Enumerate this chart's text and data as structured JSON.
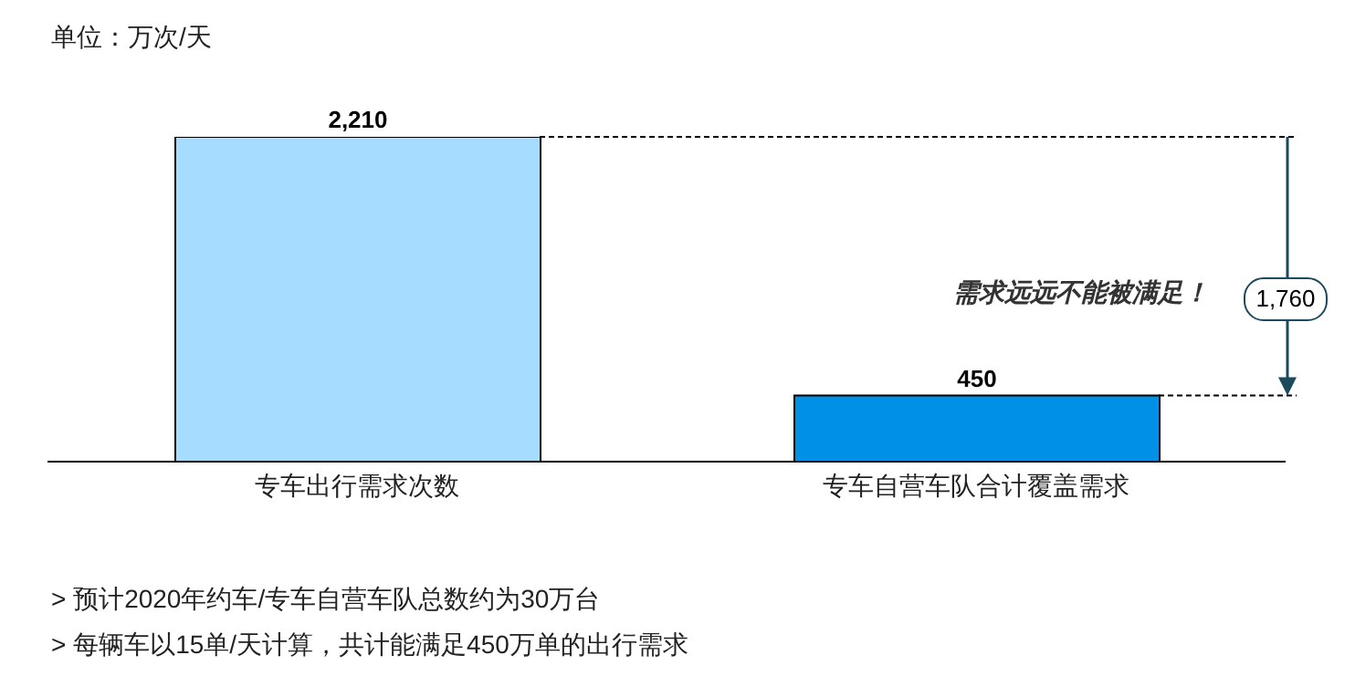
{
  "chart_data": {
    "type": "bar",
    "ylabel": "单位：万次/天",
    "categories": [
      "专车出行需求次数",
      "专车自营车队合计覆盖需求"
    ],
    "values": [
      2210,
      450
    ],
    "colors": [
      "#a6dcff",
      "#0091e6"
    ],
    "data_labels": true,
    "value_labels": [
      "2,210",
      "450"
    ],
    "tick_labels": "x",
    "grid": false,
    "legend": false,
    "ref_lines": [
      {
        "axis": "y",
        "value": 2210,
        "line_style": "dashed",
        "color": "#000000"
      },
      {
        "axis": "y",
        "value": 450,
        "line_style": "dashed",
        "color": "#000000"
      }
    ],
    "annotations": [
      "需求远远不能被满足！",
      "1,760",
      "> 预计2020年约车/专车自营车队总数约为30万台",
      "> 每辆车以15单/天计算，共计能满足450万单的出行需求"
    ]
  }
}
